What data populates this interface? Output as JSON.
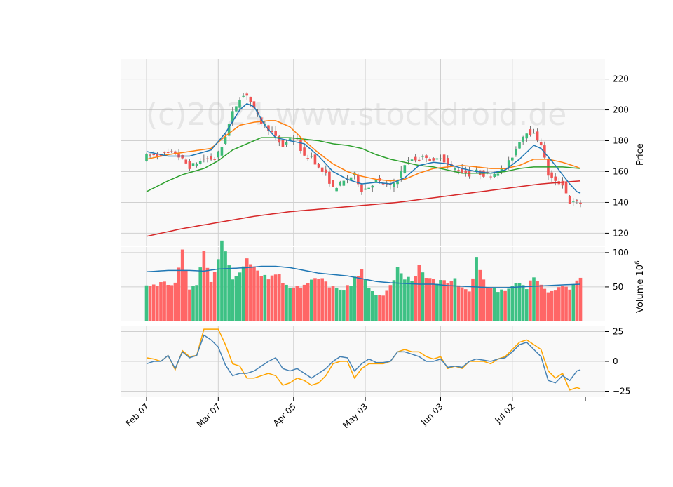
{
  "watermark": "(c)2024 www.stockdroid.de",
  "colors": {
    "up": "#3dbb7a",
    "down": "#f05454",
    "vol_up": "#3dc184",
    "vol_down": "#ff6666",
    "ma_short": "#1f77b4",
    "ma_mid": "#ff7f0e",
    "ma_long": "#2ca02c",
    "ma_200": "#d62728",
    "vol_avg": "#1f77b4",
    "osc_1": "#4682b4",
    "osc_2": "#ffa500",
    "panel_bg": "#f9f9f9",
    "grid": "#d0d0d0"
  },
  "chart_data": {
    "type": "candlestick",
    "x_tick_labels": [
      "Feb 07",
      "Mar 07",
      "Apr 05",
      "May 03",
      "Jun 03",
      "Jul 02"
    ],
    "price_panel": {
      "ylabel": "Price",
      "ylim": [
        112,
        233
      ],
      "yticks": [
        120,
        140,
        160,
        180,
        200,
        220
      ],
      "close_anchors": [
        [
          0,
          170
        ],
        [
          4,
          171
        ],
        [
          8,
          172
        ],
        [
          12,
          163
        ],
        [
          16,
          168
        ],
        [
          19,
          168
        ],
        [
          21,
          176
        ],
        [
          24,
          198
        ],
        [
          26,
          208
        ],
        [
          28,
          210
        ],
        [
          29,
          205
        ],
        [
          30,
          200
        ],
        [
          32,
          192
        ],
        [
          34,
          188
        ],
        [
          36,
          182
        ],
        [
          38,
          176
        ],
        [
          40,
          182
        ],
        [
          42,
          180
        ],
        [
          44,
          169
        ],
        [
          46,
          170
        ],
        [
          48,
          162
        ],
        [
          50,
          158
        ],
        [
          52,
          149
        ],
        [
          54,
          152
        ],
        [
          56,
          155
        ],
        [
          58,
          158
        ],
        [
          60,
          148
        ],
        [
          62,
          150
        ],
        [
          64,
          154
        ],
        [
          66,
          152
        ],
        [
          68,
          150
        ],
        [
          70,
          155
        ],
        [
          72,
          165
        ],
        [
          74,
          168
        ],
        [
          76,
          168
        ],
        [
          78,
          170
        ],
        [
          80,
          166
        ],
        [
          82,
          170
        ],
        [
          84,
          164
        ],
        [
          86,
          162
        ],
        [
          88,
          160
        ],
        [
          90,
          158
        ],
        [
          92,
          160
        ],
        [
          94,
          158
        ],
        [
          96,
          158
        ],
        [
          98,
          160
        ],
        [
          100,
          162
        ],
        [
          102,
          170
        ],
        [
          104,
          180
        ],
        [
          106,
          186
        ],
        [
          108,
          184
        ],
        [
          110,
          178
        ],
        [
          112,
          158
        ],
        [
          114,
          153
        ],
        [
          116,
          152
        ],
        [
          118,
          140
        ],
        [
          120,
          140
        ],
        [
          122,
          139
        ]
      ],
      "ma_short_anchors": [
        [
          0,
          173
        ],
        [
          6,
          170
        ],
        [
          12,
          170
        ],
        [
          18,
          174
        ],
        [
          22,
          185
        ],
        [
          26,
          200
        ],
        [
          28,
          204
        ],
        [
          30,
          202
        ],
        [
          33,
          190
        ],
        [
          36,
          182
        ],
        [
          40,
          180
        ],
        [
          44,
          178
        ],
        [
          48,
          170
        ],
        [
          52,
          160
        ],
        [
          56,
          155
        ],
        [
          60,
          152
        ],
        [
          64,
          153
        ],
        [
          68,
          152
        ],
        [
          72,
          156
        ],
        [
          76,
          164
        ],
        [
          80,
          166
        ],
        [
          84,
          165
        ],
        [
          88,
          162
        ],
        [
          92,
          160
        ],
        [
          96,
          159
        ],
        [
          100,
          161
        ],
        [
          104,
          168
        ],
        [
          108,
          177
        ],
        [
          110,
          175
        ],
        [
          114,
          164
        ],
        [
          118,
          152
        ],
        [
          120,
          147
        ],
        [
          121,
          146
        ]
      ],
      "ma_mid_anchors": [
        [
          0,
          168
        ],
        [
          6,
          171
        ],
        [
          12,
          173
        ],
        [
          18,
          175
        ],
        [
          22,
          183
        ],
        [
          26,
          190
        ],
        [
          30,
          192
        ],
        [
          34,
          193
        ],
        [
          36,
          193
        ],
        [
          40,
          189
        ],
        [
          44,
          180
        ],
        [
          48,
          172
        ],
        [
          52,
          165
        ],
        [
          56,
          160
        ],
        [
          60,
          157
        ],
        [
          64,
          155
        ],
        [
          68,
          154
        ],
        [
          72,
          155
        ],
        [
          76,
          159
        ],
        [
          80,
          162
        ],
        [
          84,
          163
        ],
        [
          88,
          164
        ],
        [
          92,
          163
        ],
        [
          96,
          162
        ],
        [
          100,
          162
        ],
        [
          104,
          164
        ],
        [
          108,
          168
        ],
        [
          112,
          168
        ],
        [
          116,
          166
        ],
        [
          120,
          163
        ],
        [
          121,
          162
        ]
      ],
      "ma_long_anchors": [
        [
          0,
          147
        ],
        [
          6,
          154
        ],
        [
          10,
          158
        ],
        [
          16,
          162
        ],
        [
          20,
          167
        ],
        [
          24,
          174
        ],
        [
          28,
          178
        ],
        [
          32,
          182
        ],
        [
          36,
          182
        ],
        [
          40,
          182
        ],
        [
          44,
          181
        ],
        [
          48,
          180
        ],
        [
          52,
          178
        ],
        [
          56,
          177
        ],
        [
          60,
          175
        ],
        [
          64,
          171
        ],
        [
          68,
          168
        ],
        [
          72,
          166
        ],
        [
          76,
          164
        ],
        [
          80,
          163
        ],
        [
          84,
          161
        ],
        [
          88,
          159
        ],
        [
          92,
          159
        ],
        [
          96,
          159
        ],
        [
          100,
          160
        ],
        [
          104,
          162
        ],
        [
          108,
          163
        ],
        [
          112,
          163
        ],
        [
          116,
          163
        ],
        [
          121,
          162
        ]
      ],
      "ma_200_anchors": [
        [
          0,
          118
        ],
        [
          10,
          123
        ],
        [
          20,
          127
        ],
        [
          30,
          131
        ],
        [
          40,
          134
        ],
        [
          50,
          136
        ],
        [
          60,
          138
        ],
        [
          70,
          140
        ],
        [
          80,
          143
        ],
        [
          90,
          146
        ],
        [
          100,
          149
        ],
        [
          110,
          152
        ],
        [
          121,
          154
        ]
      ]
    },
    "volume_panel": {
      "ylabel": "Volume  10^6",
      "ylim": [
        0,
        108
      ],
      "yticks": [
        50,
        100
      ],
      "volume_anchors": [
        [
          0,
          52
        ],
        [
          4,
          55
        ],
        [
          8,
          55
        ],
        [
          10,
          100
        ],
        [
          12,
          48
        ],
        [
          14,
          52
        ],
        [
          16,
          102
        ],
        [
          18,
          60
        ],
        [
          20,
          92
        ],
        [
          21,
          116
        ],
        [
          24,
          62
        ],
        [
          26,
          72
        ],
        [
          28,
          95
        ],
        [
          30,
          80
        ],
        [
          32,
          70
        ],
        [
          34,
          62
        ],
        [
          36,
          72
        ],
        [
          38,
          58
        ],
        [
          40,
          52
        ],
        [
          42,
          52
        ],
        [
          44,
          52
        ],
        [
          46,
          58
        ],
        [
          48,
          62
        ],
        [
          50,
          56
        ],
        [
          52,
          50
        ],
        [
          54,
          42
        ],
        [
          56,
          48
        ],
        [
          58,
          60
        ],
        [
          60,
          80
        ],
        [
          62,
          45
        ],
        [
          64,
          36
        ],
        [
          66,
          40
        ],
        [
          68,
          50
        ],
        [
          70,
          76
        ],
        [
          72,
          60
        ],
        [
          74,
          60
        ],
        [
          76,
          80
        ],
        [
          78,
          62
        ],
        [
          80,
          60
        ],
        [
          82,
          58
        ],
        [
          84,
          52
        ],
        [
          86,
          62
        ],
        [
          88,
          48
        ],
        [
          90,
          44
        ],
        [
          92,
          90
        ],
        [
          94,
          56
        ],
        [
          96,
          46
        ],
        [
          98,
          42
        ],
        [
          100,
          48
        ],
        [
          102,
          52
        ],
        [
          104,
          60
        ],
        [
          106,
          44
        ],
        [
          108,
          68
        ],
        [
          110,
          52
        ],
        [
          112,
          44
        ],
        [
          114,
          50
        ],
        [
          116,
          52
        ],
        [
          118,
          46
        ],
        [
          120,
          60
        ],
        [
          121,
          62
        ]
      ],
      "avg_anchors": [
        [
          0,
          72
        ],
        [
          6,
          74
        ],
        [
          12,
          74
        ],
        [
          16,
          73
        ],
        [
          20,
          76
        ],
        [
          24,
          77
        ],
        [
          28,
          78
        ],
        [
          32,
          80
        ],
        [
          36,
          80
        ],
        [
          40,
          78
        ],
        [
          44,
          74
        ],
        [
          48,
          70
        ],
        [
          52,
          68
        ],
        [
          56,
          66
        ],
        [
          60,
          62
        ],
        [
          64,
          58
        ],
        [
          68,
          56
        ],
        [
          72,
          55
        ],
        [
          76,
          54
        ],
        [
          80,
          54
        ],
        [
          84,
          52
        ],
        [
          88,
          51
        ],
        [
          92,
          50
        ],
        [
          96,
          49
        ],
        [
          100,
          49
        ],
        [
          104,
          50
        ],
        [
          108,
          51
        ],
        [
          112,
          52
        ],
        [
          116,
          53
        ],
        [
          121,
          54
        ]
      ]
    },
    "oscillator_panel": {
      "ylim": [
        -30,
        30
      ],
      "yticks": [
        -25,
        0,
        25
      ],
      "osc1_anchors": [
        [
          0,
          -2
        ],
        [
          2,
          0
        ],
        [
          4,
          0
        ],
        [
          6,
          5
        ],
        [
          8,
          -6
        ],
        [
          10,
          8
        ],
        [
          12,
          3
        ],
        [
          14,
          5
        ],
        [
          16,
          22
        ],
        [
          18,
          18
        ],
        [
          20,
          12
        ],
        [
          22,
          -3
        ],
        [
          24,
          -12
        ],
        [
          26,
          -10
        ],
        [
          28,
          -10
        ],
        [
          30,
          -8
        ],
        [
          32,
          -4
        ],
        [
          34,
          0
        ],
        [
          36,
          3
        ],
        [
          38,
          -6
        ],
        [
          40,
          -8
        ],
        [
          42,
          -6
        ],
        [
          44,
          -10
        ],
        [
          46,
          -14
        ],
        [
          48,
          -10
        ],
        [
          50,
          -6
        ],
        [
          52,
          0
        ],
        [
          54,
          4
        ],
        [
          56,
          3
        ],
        [
          58,
          -8
        ],
        [
          60,
          -2
        ],
        [
          62,
          2
        ],
        [
          64,
          -1
        ],
        [
          66,
          -1
        ],
        [
          68,
          0
        ],
        [
          70,
          8
        ],
        [
          72,
          8
        ],
        [
          74,
          6
        ],
        [
          76,
          4
        ],
        [
          78,
          0
        ],
        [
          80,
          0
        ],
        [
          82,
          2
        ],
        [
          84,
          -5
        ],
        [
          86,
          -4
        ],
        [
          88,
          -5
        ],
        [
          90,
          0
        ],
        [
          92,
          2
        ],
        [
          94,
          1
        ],
        [
          96,
          0
        ],
        [
          98,
          2
        ],
        [
          100,
          3
        ],
        [
          102,
          8
        ],
        [
          104,
          14
        ],
        [
          106,
          16
        ],
        [
          108,
          10
        ],
        [
          110,
          4
        ],
        [
          112,
          -16
        ],
        [
          114,
          -18
        ],
        [
          116,
          -12
        ],
        [
          118,
          -16
        ],
        [
          120,
          -8
        ],
        [
          121,
          -7
        ]
      ],
      "osc2_anchors": [
        [
          0,
          3
        ],
        [
          2,
          2
        ],
        [
          4,
          0
        ],
        [
          6,
          5
        ],
        [
          8,
          -7
        ],
        [
          10,
          9
        ],
        [
          12,
          4
        ],
        [
          14,
          5
        ],
        [
          16,
          27
        ],
        [
          18,
          27
        ],
        [
          20,
          27
        ],
        [
          22,
          14
        ],
        [
          24,
          -2
        ],
        [
          26,
          -4
        ],
        [
          28,
          -14
        ],
        [
          30,
          -14
        ],
        [
          32,
          -12
        ],
        [
          34,
          -10
        ],
        [
          36,
          -12
        ],
        [
          38,
          -20
        ],
        [
          40,
          -18
        ],
        [
          42,
          -14
        ],
        [
          44,
          -16
        ],
        [
          46,
          -20
        ],
        [
          48,
          -18
        ],
        [
          50,
          -12
        ],
        [
          52,
          -2
        ],
        [
          54,
          0
        ],
        [
          56,
          0
        ],
        [
          58,
          -14
        ],
        [
          60,
          -6
        ],
        [
          62,
          -2
        ],
        [
          64,
          -2
        ],
        [
          66,
          -2
        ],
        [
          68,
          0
        ],
        [
          70,
          8
        ],
        [
          72,
          10
        ],
        [
          74,
          8
        ],
        [
          76,
          8
        ],
        [
          78,
          4
        ],
        [
          80,
          2
        ],
        [
          82,
          4
        ],
        [
          84,
          -6
        ],
        [
          86,
          -4
        ],
        [
          88,
          -6
        ],
        [
          90,
          0
        ],
        [
          92,
          0
        ],
        [
          94,
          0
        ],
        [
          96,
          -2
        ],
        [
          98,
          2
        ],
        [
          100,
          4
        ],
        [
          102,
          10
        ],
        [
          104,
          16
        ],
        [
          106,
          18
        ],
        [
          108,
          14
        ],
        [
          110,
          10
        ],
        [
          112,
          -8
        ],
        [
          114,
          -14
        ],
        [
          116,
          -10
        ],
        [
          118,
          -24
        ],
        [
          120,
          -22
        ],
        [
          121,
          -23
        ]
      ]
    },
    "num_sessions": 122,
    "x_tick_index": [
      0,
      20,
      41,
      61,
      82,
      102
    ],
    "grid": true
  }
}
